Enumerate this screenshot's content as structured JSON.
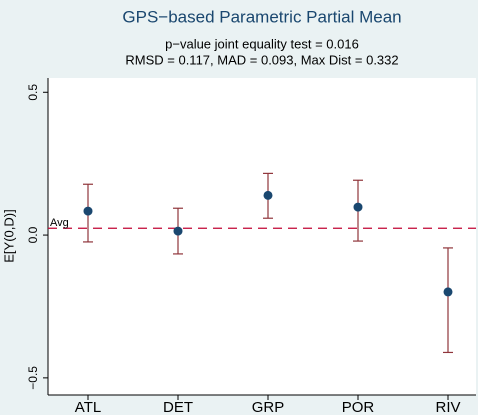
{
  "chart_data": {
    "type": "errorpoint",
    "title": "GPS−based Parametric Partial Mean",
    "subtitle": [
      "p−value joint equality test = 0.016",
      "RMSD = 0.117, MAD = 0.093, Max Dist = 0.332"
    ],
    "y_label": "E[Y(0,D)]",
    "categories": [
      "ATL",
      "DET",
      "GRP",
      "POR",
      "RIV"
    ],
    "values": [
      0.084,
      0.014,
      0.139,
      0.098,
      -0.199
    ],
    "lower": [
      -0.024,
      -0.066,
      0.059,
      -0.021,
      -0.411
    ],
    "upper": [
      0.178,
      0.094,
      0.216,
      0.192,
      -0.045
    ],
    "color": "#1a476f",
    "ci_color": "#90353b",
    "avg": 0.024,
    "avg_label": "Avg",
    "avg_color": "#c10534",
    "ylim": [
      -0.56,
      0.55
    ],
    "yticks": [
      {
        "value": -0.5,
        "label": "−0.5"
      },
      {
        "value": 0,
        "label": "0.0"
      },
      0.5
    ]
  }
}
